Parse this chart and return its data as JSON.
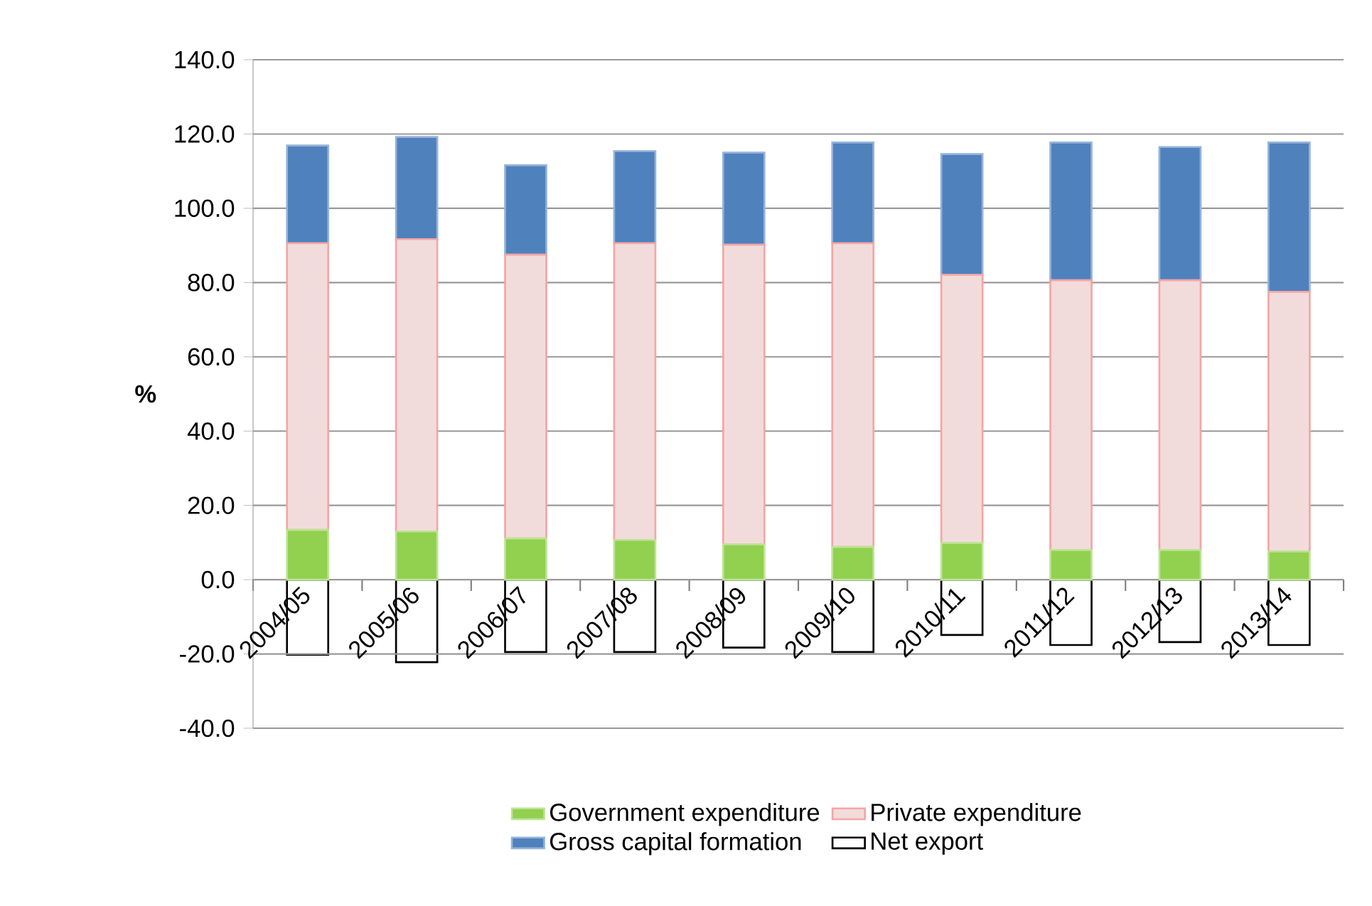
{
  "chart_data": {
    "type": "bar",
    "stacked": true,
    "ylabel": "%",
    "categories": [
      "2004/05",
      "2005/06",
      "2006/07",
      "2007/08",
      "2008/09",
      "2009/10",
      "2010/11",
      "2011/12",
      "2012/13",
      "2013/14"
    ],
    "series": [
      {
        "name": "Government expenditure",
        "color": "#92d050",
        "values": [
          13.4,
          13.0,
          11.1,
          10.7,
          9.5,
          8.8,
          9.9,
          8.0,
          8.0,
          7.6
        ]
      },
      {
        "name": "Private expenditure",
        "color": "#f2dcdb",
        "values": [
          77.2,
          78.7,
          76.4,
          79.9,
          80.7,
          81.8,
          72.2,
          72.6,
          72.6,
          69.9
        ]
      },
      {
        "name": "Gross capital formation",
        "color": "#4f81bd",
        "values": [
          26.3,
          27.5,
          24.1,
          24.8,
          24.8,
          27.1,
          32.5,
          37.1,
          35.9,
          40.2
        ]
      },
      {
        "name": "Net export",
        "color": "#ffffff",
        "values": [
          -20.2,
          -22.2,
          -19.5,
          -19.5,
          -18.3,
          -19.5,
          -14.9,
          -17.6,
          -16.8,
          -17.6
        ]
      }
    ],
    "ylim": [
      -40,
      140
    ],
    "yticks": [
      {
        "value": -40,
        "label": "-40.0"
      },
      {
        "value": -20,
        "label": "-20.0"
      },
      {
        "value": 0,
        "label": "0.0"
      },
      {
        "value": 20,
        "label": "20.0"
      },
      {
        "value": 40,
        "label": "40.0"
      },
      {
        "value": 60,
        "label": "60.0"
      },
      {
        "value": 80,
        "label": "80.0"
      },
      {
        "value": 100,
        "label": "100.0"
      },
      {
        "value": 120,
        "label": "120.0"
      },
      {
        "value": 140,
        "label": "140.0"
      }
    ],
    "grid": "y",
    "legend": "bottom"
  }
}
